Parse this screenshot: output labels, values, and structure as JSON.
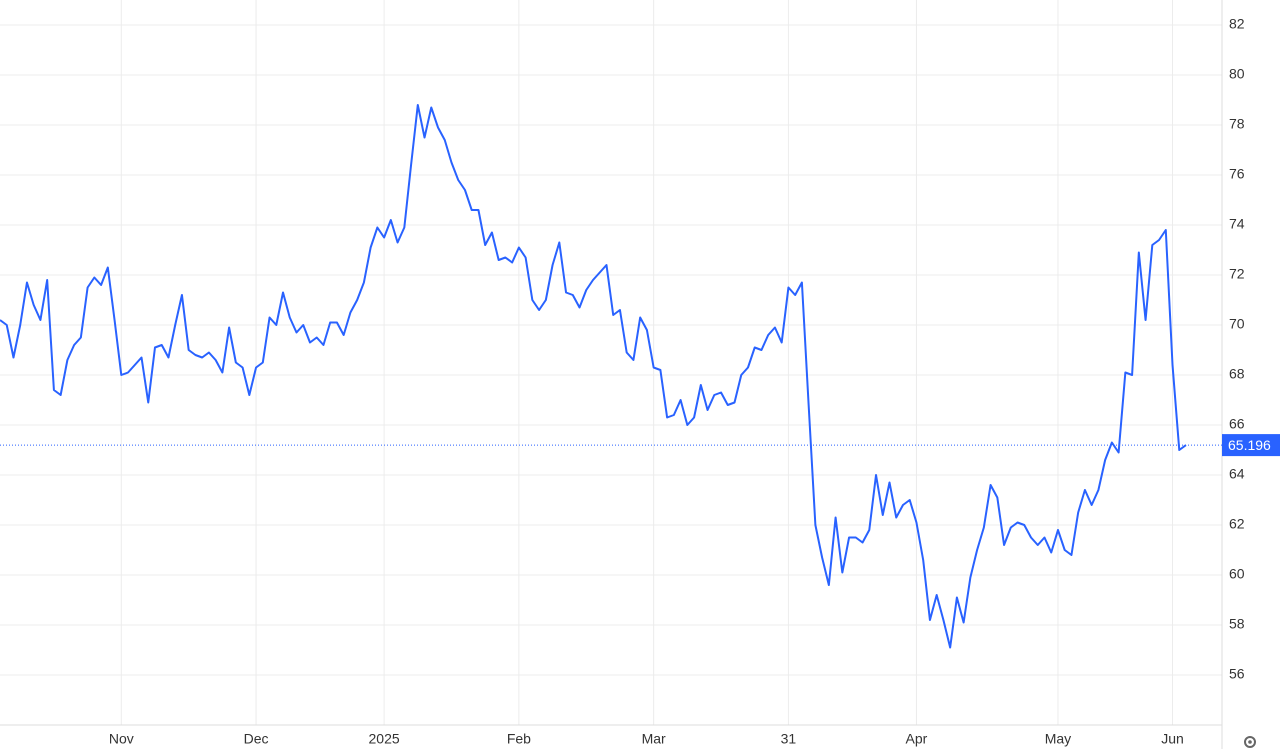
{
  "chart_data": {
    "type": "line",
    "categories": [
      null,
      null,
      null,
      null,
      null,
      null,
      null,
      null,
      null,
      null,
      null,
      null,
      null,
      null,
      null,
      null,
      null,
      null,
      "Nov",
      null,
      null,
      null,
      null,
      null,
      null,
      null,
      null,
      null,
      null,
      null,
      null,
      null,
      null,
      null,
      null,
      null,
      null,
      null,
      "Dec",
      null,
      null,
      null,
      null,
      null,
      null,
      null,
      null,
      null,
      null,
      null,
      null,
      null,
      null,
      null,
      null,
      null,
      null,
      "2025",
      null,
      null,
      null,
      null,
      null,
      null,
      null,
      null,
      null,
      null,
      null,
      null,
      null,
      null,
      null,
      null,
      null,
      null,
      null,
      "Feb",
      null,
      null,
      null,
      null,
      null,
      null,
      null,
      null,
      null,
      null,
      null,
      null,
      null,
      null,
      null,
      null,
      null,
      null,
      null,
      "Mar",
      null,
      null,
      null,
      null,
      null,
      null,
      null,
      null,
      null,
      null,
      null,
      null,
      null,
      null,
      null,
      null,
      null,
      null,
      null,
      "31",
      null,
      null,
      null,
      null,
      null,
      null,
      null,
      null,
      null,
      null,
      null,
      null,
      null,
      null,
      null,
      null,
      null,
      null,
      "Apr",
      null,
      null,
      null,
      null,
      null,
      null,
      null,
      null,
      null,
      null,
      null,
      null,
      null,
      null,
      null,
      null,
      null,
      null,
      null,
      null,
      "May",
      null,
      null,
      null,
      null,
      null,
      null,
      null,
      null,
      null,
      null,
      null,
      null,
      null,
      null,
      null,
      null,
      "Jun",
      null,
      null
    ],
    "values": [
      70.2,
      70.0,
      68.7,
      70.0,
      71.7,
      70.8,
      70.2,
      71.8,
      67.4,
      67.2,
      68.6,
      69.2,
      69.5,
      71.5,
      71.9,
      71.6,
      72.3,
      70.2,
      68.0,
      68.1,
      68.4,
      68.7,
      66.9,
      69.1,
      69.2,
      68.7,
      70.0,
      71.2,
      69.0,
      68.8,
      68.7,
      68.9,
      68.6,
      68.1,
      69.9,
      68.5,
      68.3,
      67.2,
      68.3,
      68.5,
      70.3,
      70.0,
      71.3,
      70.3,
      69.7,
      70.0,
      69.3,
      69.5,
      69.2,
      70.1,
      70.1,
      69.6,
      70.5,
      71.0,
      71.7,
      73.1,
      73.9,
      73.5,
      74.2,
      73.3,
      73.9,
      76.4,
      78.8,
      77.5,
      78.7,
      77.9,
      77.4,
      76.5,
      75.8,
      75.4,
      74.6,
      74.6,
      73.2,
      73.7,
      72.6,
      72.7,
      72.5,
      73.1,
      72.7,
      71.0,
      70.6,
      71.0,
      72.4,
      73.3,
      71.3,
      71.2,
      70.7,
      71.4,
      71.8,
      72.1,
      72.4,
      70.4,
      70.6,
      68.9,
      68.6,
      70.3,
      69.8,
      68.3,
      68.2,
      66.3,
      66.4,
      67.0,
      66.0,
      66.3,
      67.6,
      66.6,
      67.2,
      67.3,
      66.8,
      66.9,
      68.0,
      68.3,
      69.1,
      69.0,
      69.6,
      69.9,
      69.3,
      71.5,
      71.2,
      71.7,
      66.8,
      62.0,
      60.7,
      59.6,
      62.3,
      60.1,
      61.5,
      61.5,
      61.3,
      61.8,
      64.0,
      62.4,
      63.7,
      62.3,
      62.8,
      63.0,
      62.1,
      60.6,
      58.2,
      59.2,
      58.2,
      57.1,
      59.1,
      58.1,
      59.9,
      61.0,
      61.9,
      63.6,
      63.1,
      61.2,
      61.9,
      62.1,
      62.0,
      61.5,
      61.2,
      61.5,
      60.9,
      61.8,
      61.0,
      60.8,
      62.5,
      63.4,
      62.8,
      63.4,
      64.6,
      65.3,
      64.9,
      68.1,
      68.0,
      72.9,
      70.2,
      73.2,
      73.4,
      73.8,
      68.4,
      65.0,
      65.196
    ],
    "color": "#2962ff",
    "ylim": [
      54,
      83
    ],
    "yticks": [
      56,
      58,
      60,
      62,
      64,
      66,
      68,
      70,
      72,
      74,
      76,
      78,
      80,
      82
    ],
    "grid": true,
    "last_value_tag": true
  }
}
